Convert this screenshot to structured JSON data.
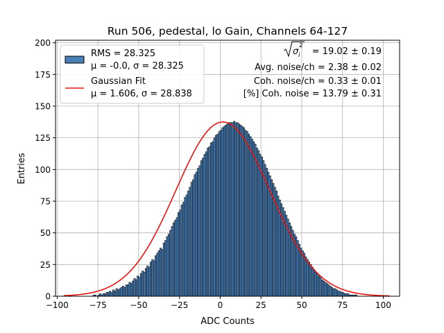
{
  "chart_data": {
    "type": "bar",
    "title": "Run 506, pedestal, lo Gain, Channels 64-127",
    "xlabel": "ADC Counts",
    "ylabel": "Entries",
    "xlim": [
      -101,
      110
    ],
    "ylim": [
      0,
      202
    ],
    "xticks": [
      -100,
      -75,
      -50,
      -25,
      0,
      25,
      50,
      75,
      100
    ],
    "yticks": [
      0,
      25,
      50,
      75,
      100,
      125,
      150,
      175,
      200
    ],
    "grid": true,
    "legend_position": "top-left",
    "series": [
      {
        "name": "RMS = 28.325",
        "name_line2": "μ = -0.0, σ = 28.325",
        "kind": "histogram",
        "color": "#4a7fb5",
        "edgecolor": "#000000",
        "bin_width": 1,
        "bin_start": -96,
        "values": [
          0,
          0,
          0,
          0,
          0,
          0,
          0,
          0,
          0,
          0,
          0,
          0,
          0,
          0,
          0,
          0,
          0,
          0,
          1,
          1,
          0,
          1,
          2,
          1,
          2,
          2,
          3,
          3,
          4,
          3,
          5,
          4,
          6,
          5,
          6,
          7,
          8,
          7,
          9,
          9,
          11,
          10,
          12,
          14,
          13,
          16,
          15,
          18,
          20,
          19,
          22,
          24,
          23,
          27,
          29,
          28,
          32,
          34,
          36,
          38,
          37,
          42,
          44,
          47,
          49,
          52,
          55,
          58,
          60,
          62,
          66,
          68,
          72,
          74,
          78,
          80,
          83,
          86,
          90,
          92,
          96,
          98,
          101,
          103,
          107,
          109,
          112,
          114,
          117,
          118,
          121,
          122,
          125,
          127,
          128,
          130,
          131,
          133,
          134,
          135,
          136,
          137,
          137,
          137,
          138,
          137,
          137,
          136,
          135,
          134,
          133,
          131,
          130,
          128,
          126,
          124,
          122,
          120,
          117,
          115,
          112,
          110,
          107,
          104,
          101,
          98,
          95,
          92,
          89,
          86,
          83,
          79,
          76,
          73,
          70,
          67,
          64,
          61,
          58,
          55,
          52,
          49,
          47,
          44,
          41,
          38,
          36,
          34,
          31,
          29,
          27,
          25,
          23,
          21,
          19,
          18,
          16,
          15,
          13,
          12,
          11,
          10,
          9,
          8,
          7,
          6,
          6,
          5,
          4,
          4,
          3,
          3,
          2,
          2,
          2,
          1,
          1,
          1,
          1,
          1,
          0,
          0,
          0,
          0,
          0,
          0,
          0,
          0,
          0,
          0,
          0,
          0,
          0,
          0,
          0,
          0,
          0,
          0,
          0,
          0,
          0,
          0
        ]
      },
      {
        "name": "Gaussian Fit",
        "name_line2": "μ = 1.606, σ = 28.838",
        "kind": "line",
        "color": "#e8130f",
        "mu": 1.606,
        "sigma": 28.838,
        "amplitude": 137.5,
        "x_range": [
          -96,
          104
        ]
      }
    ],
    "annotations": [
      "√σᵢ² = 19.02 ± 0.19",
      "Avg. noise/ch = 2.38 ± 0.02",
      "Coh. noise/ch = 0.33 ± 0.01",
      "[%] Coh. noise = 13.79 ± 0.31"
    ],
    "annotation_sqrt": {
      "symbol": "σ",
      "subscript": "i",
      "superscript": "2",
      "value": "= 19.02 ± 0.19"
    }
  }
}
